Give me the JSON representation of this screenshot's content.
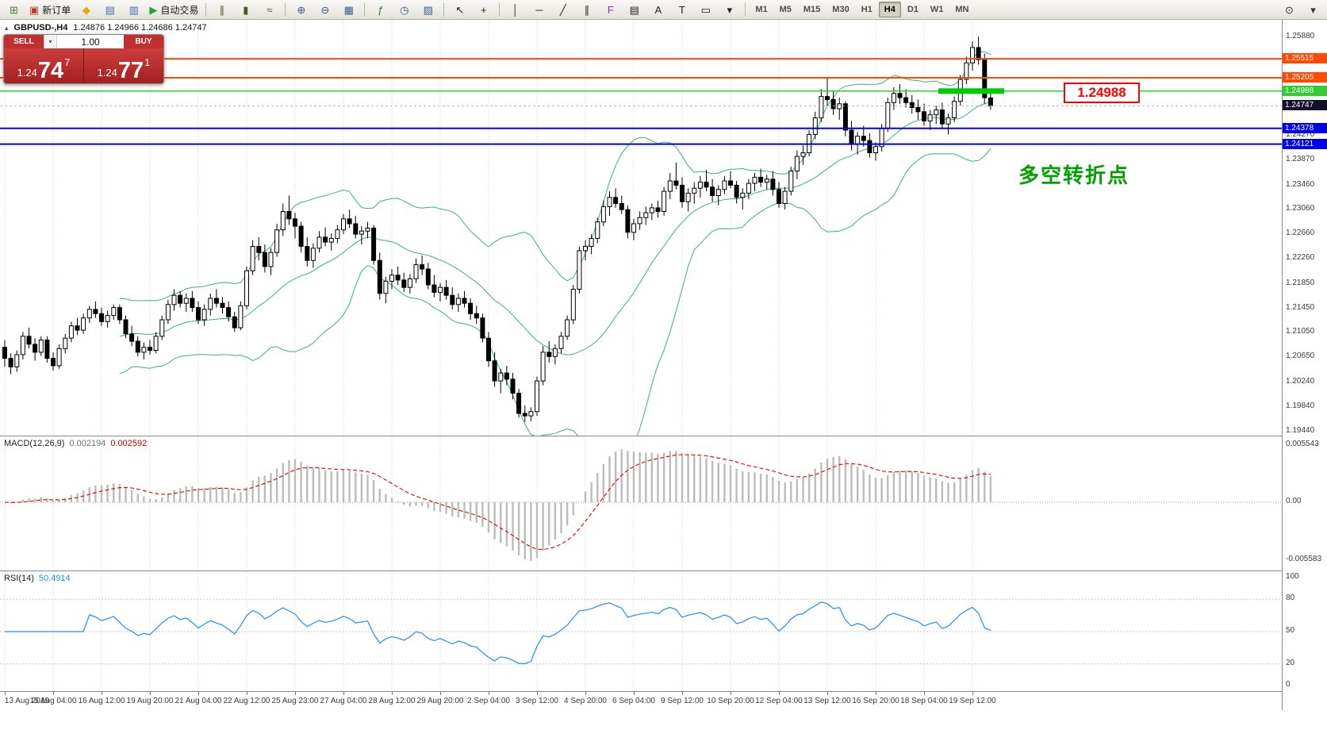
{
  "toolbar": {
    "left_buttons": [
      {
        "name": "new-chart-button",
        "glyph": "⊞",
        "color": "#4a7d3a"
      },
      {
        "name": "new-order-button",
        "glyph": "▣",
        "color": "#b93a2f",
        "label": "新订单"
      },
      {
        "name": "favorites-button",
        "glyph": "◆",
        "color": "#e0a912"
      },
      {
        "name": "market-watch-button",
        "glyph": "▤",
        "color": "#476cae"
      },
      {
        "name": "data-window-button",
        "glyph": "▥",
        "color": "#476cae"
      },
      {
        "name": "autotrading-button",
        "glyph": "▶",
        "color": "#23a038",
        "label": "自动交易"
      },
      {
        "sep": true
      },
      {
        "name": "bar-chart-mode-button",
        "glyph": "∥",
        "color": "#4c5a2e"
      },
      {
        "name": "candlestick-mode-button",
        "glyph": "▮",
        "color": "#4c5a2e"
      },
      {
        "name": "line-chart-mode-button",
        "glyph": "≈",
        "color": "#4c5a2e"
      },
      {
        "sep": true
      },
      {
        "name": "zoom-in-button",
        "glyph": "⊕",
        "color": "#3a5e8c"
      },
      {
        "name": "zoom-out-button",
        "glyph": "⊖",
        "color": "#3a5e8c"
      },
      {
        "name": "tile-windows-button",
        "glyph": "▦",
        "color": "#3a5e8c"
      },
      {
        "sep": true
      },
      {
        "name": "indicators-button",
        "glyph": "ƒ",
        "color": "#2e7d32"
      },
      {
        "name": "period-button",
        "glyph": "◷",
        "color": "#3a5e8c"
      },
      {
        "name": "templates-button",
        "glyph": "▨",
        "color": "#3a5e8c"
      },
      {
        "sep": true
      },
      {
        "name": "cursor-button",
        "glyph": "↖",
        "color": "#222"
      },
      {
        "name": "crosshair-button",
        "glyph": "+",
        "color": "#222"
      },
      {
        "sep": true
      },
      {
        "name": "vertical-line-button",
        "glyph": "│",
        "color": "#222"
      },
      {
        "name": "horizontal-line-button",
        "glyph": "─",
        "color": "#222"
      },
      {
        "name": "trendline-button",
        "glyph": "╱",
        "color": "#222"
      },
      {
        "name": "channel-button",
        "glyph": "∥",
        "color": "#222"
      },
      {
        "name": "fibonacci-button",
        "glyph": "F",
        "color": "#8a2be2"
      },
      {
        "name": "grid-button",
        "glyph": "▤",
        "color": "#222"
      },
      {
        "name": "text-button",
        "glyph": "A",
        "color": "#222"
      },
      {
        "name": "text-label-button",
        "glyph": "T",
        "color": "#222"
      },
      {
        "name": "shapes-button",
        "glyph": "▭",
        "color": "#222"
      },
      {
        "name": "arrows-dropdown-button",
        "glyph": "▾",
        "color": "#222"
      },
      {
        "sep": true
      }
    ],
    "timeframes": {
      "options": [
        "M1",
        "M5",
        "M15",
        "M30",
        "H1",
        "H4",
        "D1",
        "W1",
        "MN"
      ],
      "active": "H4"
    },
    "right_buttons": [
      {
        "name": "search-button",
        "glyph": "⊙",
        "color": "#333"
      },
      {
        "name": "layout-dropdown-button",
        "glyph": "▾",
        "color": "#333"
      }
    ]
  },
  "chart_header": {
    "marker": "▴",
    "symbol": "GBPUSD-,H4",
    "ohlc_text": "1.24876 1.24966 1.24686 1.24747"
  },
  "one_click": {
    "sell_label": "SELL",
    "buy_label": "BUY",
    "volume": "1.00",
    "dropdown_icon": "▾",
    "sell_price": {
      "prefix": "1.24",
      "big": "74",
      "sup": "7"
    },
    "buy_price": {
      "prefix": "1.24",
      "big": "77",
      "sup": "1"
    },
    "panel_color": "#c13030"
  },
  "levels": [
    {
      "label": "1.25515",
      "price": 1.25515,
      "color": "#ff4a00",
      "width": 2
    },
    {
      "label": "1.25205",
      "price": 1.25205,
      "color": "#ff4a00",
      "width": 2
    },
    {
      "label": "1.24988",
      "price": 1.24988,
      "color": "#33cc33",
      "width": 1.5
    },
    {
      "label": "1.24378",
      "price": 1.24378,
      "color": "#0000ee",
      "width": 2
    },
    {
      "label": "1.24121",
      "price": 1.24121,
      "color": "#0000ee",
      "width": 2
    }
  ],
  "current_price": {
    "label": "1.24747",
    "price": 1.24747,
    "badge_bg": "#10102a"
  },
  "highlight_segment": {
    "price": 1.24988,
    "x_start": 1183,
    "x_end": 1266,
    "color": "#00cc00",
    "thickness": 7
  },
  "callout": {
    "text": "1.24988",
    "color": "#ff0000"
  },
  "annotation": {
    "text": "多空转折点",
    "color": "#00a000"
  },
  "price_axis_ticks": [
    "1.25880",
    "1.24270",
    "1.23870",
    "1.23460",
    "1.23060",
    "1.22660",
    "1.22260",
    "1.21850",
    "1.21450",
    "1.21050",
    "1.20650",
    "1.20240",
    "1.19840",
    "1.19440"
  ],
  "macd": {
    "title": "MACD(12,26,9)",
    "value_main": "0.002194",
    "value_signal": "0.002592",
    "axis_labels": [
      "0.005543",
      "0.00",
      "-0.005583"
    ],
    "histogram_color": "#bcbcbc",
    "signal_color": "#e00000"
  },
  "rsi": {
    "title": "RSI(14)",
    "value": "50.4914",
    "axis_labels": [
      100,
      80,
      50,
      20,
      0
    ],
    "levels": [
      80,
      50,
      20
    ],
    "line_color": "#1e90ff"
  },
  "time_axis": {
    "labels": [
      "13 Aug 2019",
      "15 Aug 04:00",
      "16 Aug 12:00",
      "19 Aug 20:00",
      "21 Aug 04:00",
      "22 Aug 12:00",
      "25 Aug 23:00",
      "27 Aug 04:00",
      "28 Aug 12:00",
      "29 Aug 20:00",
      "2 Sep 04:00",
      "3 Sep 12:00",
      "4 Sep 20:00",
      "6 Sep 04:00",
      "9 Sep 12:00",
      "10 Sep 20:00",
      "12 Sep 04:00",
      "13 Sep 12:00",
      "16 Sep 20:00",
      "18 Sep 04:00",
      "19 Sep 12:00"
    ]
  },
  "chart_data": {
    "type": "candlestick",
    "symbol": "GBPUSD",
    "timeframe": "H4",
    "y_range": [
      1.1944,
      1.2614
    ],
    "colors": {
      "bull": "#ffffff",
      "bear": "#000000",
      "wick": "#000000",
      "bollinger": "#3cb371"
    },
    "indicators": {
      "bollinger_period": 20,
      "bollinger_deviation": 2,
      "macd": [
        12,
        26,
        9
      ],
      "rsi_period": 14
    },
    "ohlc": [
      [
        1.208,
        1.2092,
        1.2048,
        1.2062
      ],
      [
        1.2062,
        1.207,
        1.2036,
        1.2048
      ],
      [
        1.2048,
        1.2075,
        1.204,
        1.2068
      ],
      [
        1.2068,
        1.2105,
        1.206,
        1.2098
      ],
      [
        1.2098,
        1.2112,
        1.2078,
        1.2085
      ],
      [
        1.2085,
        1.2095,
        1.2058,
        1.2072
      ],
      [
        1.2072,
        1.2098,
        1.2066,
        1.2092
      ],
      [
        1.2092,
        1.2098,
        1.2055,
        1.2062
      ],
      [
        1.2062,
        1.2072,
        1.2042,
        1.205
      ],
      [
        1.205,
        1.2085,
        1.2045,
        1.2078
      ],
      [
        1.2078,
        1.2102,
        1.207,
        1.2095
      ],
      [
        1.2095,
        1.2122,
        1.2088,
        1.2115
      ],
      [
        1.2115,
        1.2128,
        1.21,
        1.2108
      ],
      [
        1.2108,
        1.2135,
        1.2102,
        1.2128
      ],
      [
        1.2128,
        1.2148,
        1.212,
        1.2142
      ],
      [
        1.2142,
        1.2155,
        1.2128,
        1.2135
      ],
      [
        1.2135,
        1.2145,
        1.2115,
        1.2122
      ],
      [
        1.2122,
        1.214,
        1.2112,
        1.2132
      ],
      [
        1.2132,
        1.215,
        1.2125,
        1.2145
      ],
      [
        1.2145,
        1.215,
        1.2118,
        1.2125
      ],
      [
        1.2125,
        1.2132,
        1.2095,
        1.2102
      ],
      [
        1.2102,
        1.2115,
        1.2082,
        1.209
      ],
      [
        1.209,
        1.2098,
        1.2065,
        1.2072
      ],
      [
        1.2072,
        1.2088,
        1.206,
        1.208
      ],
      [
        1.208,
        1.2092,
        1.2068,
        1.2075
      ],
      [
        1.2075,
        1.2105,
        1.207,
        1.2098
      ],
      [
        1.2098,
        1.2132,
        1.2092,
        1.2125
      ],
      [
        1.2125,
        1.2158,
        1.2118,
        1.215
      ],
      [
        1.215,
        1.2175,
        1.214,
        1.2165
      ],
      [
        1.2165,
        1.2172,
        1.2145,
        1.2152
      ],
      [
        1.2152,
        1.2168,
        1.2138,
        1.216
      ],
      [
        1.216,
        1.2172,
        1.2138,
        1.2145
      ],
      [
        1.2145,
        1.2155,
        1.2118,
        1.2125
      ],
      [
        1.2125,
        1.215,
        1.2115,
        1.2142
      ],
      [
        1.2142,
        1.2168,
        1.2132,
        1.216
      ],
      [
        1.216,
        1.2175,
        1.2145,
        1.2152
      ],
      [
        1.2152,
        1.2162,
        1.2135,
        1.2145
      ],
      [
        1.2145,
        1.2155,
        1.2122,
        1.213
      ],
      [
        1.213,
        1.2138,
        1.2105,
        1.2112
      ],
      [
        1.2112,
        1.2155,
        1.2108,
        1.2148
      ],
      [
        1.2148,
        1.2212,
        1.2142,
        1.2205
      ],
      [
        1.2205,
        1.2255,
        1.2198,
        1.2245
      ],
      [
        1.2245,
        1.226,
        1.2222,
        1.2235
      ],
      [
        1.2235,
        1.2248,
        1.2202,
        1.2212
      ],
      [
        1.2212,
        1.2242,
        1.2198,
        1.2235
      ],
      [
        1.2235,
        1.2282,
        1.2228,
        1.2272
      ],
      [
        1.2272,
        1.2315,
        1.2262,
        1.2302
      ],
      [
        1.2302,
        1.2328,
        1.228,
        1.229
      ],
      [
        1.229,
        1.23,
        1.2258,
        1.2278
      ],
      [
        1.2278,
        1.2285,
        1.2235,
        1.2245
      ],
      [
        1.2245,
        1.226,
        1.2212,
        1.2222
      ],
      [
        1.2222,
        1.225,
        1.221,
        1.2242
      ],
      [
        1.2242,
        1.227,
        1.2235,
        1.226
      ],
      [
        1.226,
        1.2276,
        1.2245,
        1.2252
      ],
      [
        1.2252,
        1.2266,
        1.2238,
        1.2258
      ],
      [
        1.2258,
        1.228,
        1.225,
        1.2272
      ],
      [
        1.2272,
        1.2298,
        1.2265,
        1.229
      ],
      [
        1.229,
        1.2305,
        1.2275,
        1.2282
      ],
      [
        1.2282,
        1.2295,
        1.2258,
        1.2265
      ],
      [
        1.2265,
        1.2278,
        1.2248,
        1.227
      ],
      [
        1.227,
        1.2285,
        1.2258,
        1.2275
      ],
      [
        1.2275,
        1.228,
        1.2215,
        1.2222
      ],
      [
        1.2222,
        1.2235,
        1.2158,
        1.2168
      ],
      [
        1.2168,
        1.2195,
        1.2152,
        1.2188
      ],
      [
        1.2188,
        1.2208,
        1.2175,
        1.2198
      ],
      [
        1.2198,
        1.2212,
        1.2182,
        1.219
      ],
      [
        1.219,
        1.2202,
        1.217,
        1.2178
      ],
      [
        1.2178,
        1.22,
        1.2168,
        1.2192
      ],
      [
        1.2192,
        1.2225,
        1.2185,
        1.2215
      ],
      [
        1.2215,
        1.223,
        1.2198,
        1.2208
      ],
      [
        1.2208,
        1.2218,
        1.2175,
        1.2182
      ],
      [
        1.2182,
        1.2198,
        1.2162,
        1.217
      ],
      [
        1.217,
        1.2185,
        1.2155,
        1.2178
      ],
      [
        1.2178,
        1.219,
        1.2158,
        1.2165
      ],
      [
        1.2165,
        1.2178,
        1.2142,
        1.215
      ],
      [
        1.215,
        1.2168,
        1.2138,
        1.216
      ],
      [
        1.216,
        1.2172,
        1.2145,
        1.2152
      ],
      [
        1.2152,
        1.216,
        1.2125,
        1.2135
      ],
      [
        1.2135,
        1.2148,
        1.2118,
        1.2128
      ],
      [
        1.2128,
        1.2135,
        1.2088,
        1.2095
      ],
      [
        1.2095,
        1.2105,
        1.2048,
        1.2058
      ],
      [
        1.2058,
        1.2072,
        1.2015,
        1.2025
      ],
      [
        1.2025,
        1.2045,
        1.2005,
        1.2038
      ],
      [
        1.2038,
        1.205,
        1.2018,
        1.2028
      ],
      [
        1.2028,
        1.2038,
        1.1995,
        1.2005
      ],
      [
        1.2005,
        1.2012,
        1.1965,
        1.1972
      ],
      [
        1.1972,
        1.1985,
        1.1958,
        1.1968
      ],
      [
        1.1968,
        1.1982,
        1.1959,
        1.1975
      ],
      [
        1.1975,
        1.2032,
        1.1968,
        1.2025
      ],
      [
        1.2025,
        1.2082,
        1.2018,
        1.2072
      ],
      [
        1.2072,
        1.209,
        1.2055,
        1.2065
      ],
      [
        1.2065,
        1.2085,
        1.2052,
        1.2078
      ],
      [
        1.2078,
        1.2105,
        1.207,
        1.2098
      ],
      [
        1.2098,
        1.2132,
        1.2092,
        1.2125
      ],
      [
        1.2125,
        1.2182,
        1.2118,
        1.2175
      ],
      [
        1.2175,
        1.2245,
        1.2168,
        1.2238
      ],
      [
        1.2238,
        1.2255,
        1.2222,
        1.2245
      ],
      [
        1.2245,
        1.2265,
        1.2232,
        1.2258
      ],
      [
        1.2258,
        1.2292,
        1.225,
        1.2285
      ],
      [
        1.2285,
        1.232,
        1.2278,
        1.231
      ],
      [
        1.231,
        1.2335,
        1.2295,
        1.2325
      ],
      [
        1.2325,
        1.234,
        1.2308,
        1.2315
      ],
      [
        1.2315,
        1.2328,
        1.2298,
        1.2305
      ],
      [
        1.2305,
        1.2312,
        1.2258,
        1.2268
      ],
      [
        1.2268,
        1.229,
        1.2255,
        1.2282
      ],
      [
        1.2282,
        1.2302,
        1.2272,
        1.2292
      ],
      [
        1.2292,
        1.231,
        1.228,
        1.23
      ],
      [
        1.23,
        1.2315,
        1.2288,
        1.2308
      ],
      [
        1.2308,
        1.232,
        1.2292,
        1.2302
      ],
      [
        1.2302,
        1.2342,
        1.2295,
        1.2335
      ],
      [
        1.2335,
        1.2365,
        1.2322,
        1.2352
      ],
      [
        1.2352,
        1.2382,
        1.2338,
        1.2345
      ],
      [
        1.2345,
        1.2358,
        1.2308,
        1.2318
      ],
      [
        1.2318,
        1.234,
        1.2302,
        1.2332
      ],
      [
        1.2332,
        1.235,
        1.2315,
        1.234
      ],
      [
        1.234,
        1.236,
        1.2325,
        1.235
      ],
      [
        1.235,
        1.237,
        1.2335,
        1.2342
      ],
      [
        1.2342,
        1.2355,
        1.2318,
        1.2328
      ],
      [
        1.2328,
        1.2345,
        1.2312,
        1.2338
      ],
      [
        1.2338,
        1.236,
        1.233,
        1.2352
      ],
      [
        1.2352,
        1.2368,
        1.234,
        1.2345
      ],
      [
        1.2345,
        1.2352,
        1.2315,
        1.2325
      ],
      [
        1.2325,
        1.234,
        1.2305,
        1.2332
      ],
      [
        1.2332,
        1.2355,
        1.2322,
        1.2348
      ],
      [
        1.2348,
        1.2365,
        1.2335,
        1.2358
      ],
      [
        1.2358,
        1.2372,
        1.2342,
        1.235
      ],
      [
        1.235,
        1.2362,
        1.2338,
        1.2355
      ],
      [
        1.2355,
        1.2368,
        1.2328,
        1.2338
      ],
      [
        1.2338,
        1.235,
        1.2308,
        1.2315
      ],
      [
        1.2315,
        1.2342,
        1.2305,
        1.2335
      ],
      [
        1.2335,
        1.2375,
        1.2328,
        1.2368
      ],
      [
        1.2368,
        1.2402,
        1.2355,
        1.2392
      ],
      [
        1.2392,
        1.241,
        1.2378,
        1.2398
      ],
      [
        1.2398,
        1.2435,
        1.2392,
        1.2428
      ],
      [
        1.2428,
        1.2465,
        1.242,
        1.2455
      ],
      [
        1.2455,
        1.2502,
        1.2448,
        1.249
      ],
      [
        1.249,
        1.252,
        1.2475,
        1.2485
      ],
      [
        1.2485,
        1.25,
        1.246,
        1.247
      ],
      [
        1.247,
        1.2488,
        1.2452,
        1.2478
      ],
      [
        1.2478,
        1.2482,
        1.2425,
        1.2435
      ],
      [
        1.2435,
        1.245,
        1.2402,
        1.2412
      ],
      [
        1.2412,
        1.2432,
        1.2395,
        1.2425
      ],
      [
        1.2425,
        1.2442,
        1.2408,
        1.2418
      ],
      [
        1.2418,
        1.243,
        1.239,
        1.2398
      ],
      [
        1.2398,
        1.2415,
        1.2385,
        1.2408
      ],
      [
        1.2408,
        1.2445,
        1.24,
        1.2438
      ],
      [
        1.2438,
        1.2488,
        1.2432,
        1.248
      ],
      [
        1.248,
        1.2505,
        1.2468,
        1.2495
      ],
      [
        1.2495,
        1.251,
        1.2478,
        1.2488
      ],
      [
        1.2488,
        1.2502,
        1.2472,
        1.248
      ],
      [
        1.248,
        1.2492,
        1.2462,
        1.2472
      ],
      [
        1.2472,
        1.2485,
        1.2452,
        1.2465
      ],
      [
        1.2465,
        1.2478,
        1.2442,
        1.245
      ],
      [
        1.245,
        1.2468,
        1.2435,
        1.246
      ],
      [
        1.246,
        1.2475,
        1.2445,
        1.2468
      ],
      [
        1.2468,
        1.248,
        1.2438,
        1.2445
      ],
      [
        1.2445,
        1.2462,
        1.2428,
        1.2455
      ],
      [
        1.2455,
        1.249,
        1.2448,
        1.2482
      ],
      [
        1.2482,
        1.2525,
        1.2475,
        1.2518
      ],
      [
        1.2518,
        1.2555,
        1.251,
        1.2545
      ],
      [
        1.2545,
        1.258,
        1.2532,
        1.257
      ],
      [
        1.257,
        1.2588,
        1.2542,
        1.255
      ],
      [
        1.255,
        1.256,
        1.2478,
        1.2488
      ],
      [
        1.24876,
        1.24966,
        1.24686,
        1.24747
      ]
    ]
  }
}
